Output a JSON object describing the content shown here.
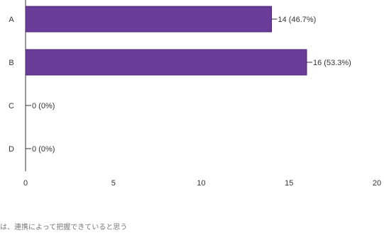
{
  "chart_data": {
    "type": "bar",
    "orientation": "horizontal",
    "categories": [
      "A",
      "B",
      "C",
      "D"
    ],
    "values": [
      14,
      16,
      0,
      0
    ],
    "data_labels": [
      "14 (46.7%)",
      "16 (53.3%)",
      "0 (0%)",
      "0 (0%)"
    ],
    "x_ticks": [
      0,
      5,
      10,
      15,
      20
    ],
    "xlim": [
      0,
      20
    ],
    "title": "",
    "xlabel": "",
    "ylabel": "",
    "grid": false,
    "bar_color": "#6a3d9a",
    "bar_border_color": "#4a2470"
  },
  "footer": {
    "text": "は、連携によって把握できていると思う"
  }
}
